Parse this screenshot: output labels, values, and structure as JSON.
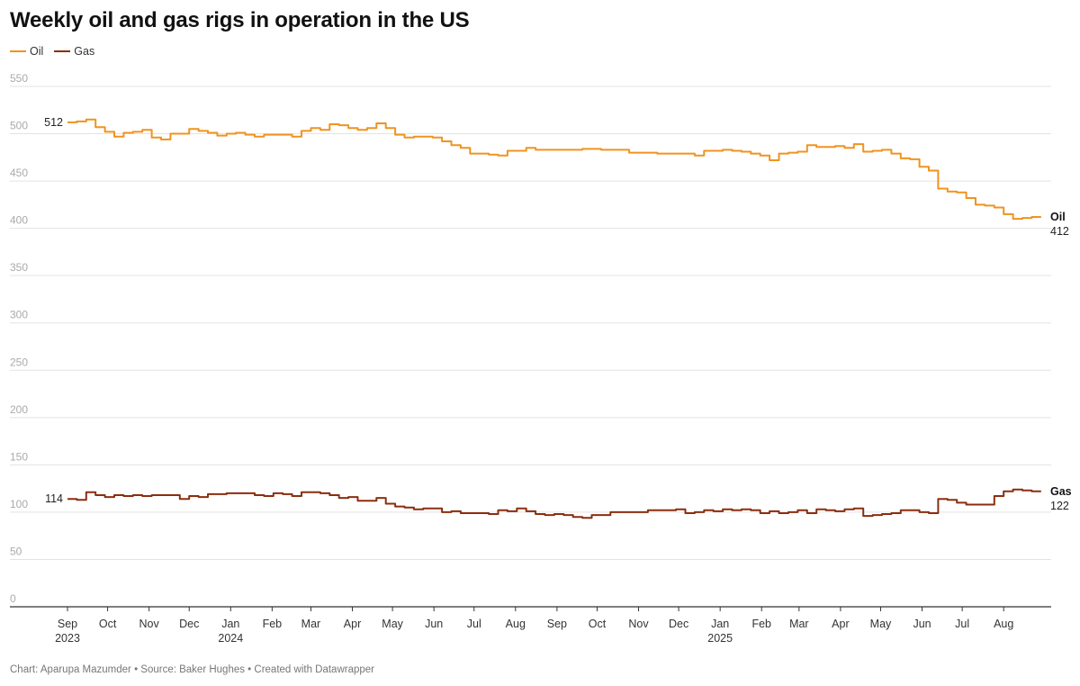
{
  "chart_data": {
    "type": "line",
    "title": "Weekly oil and gas rigs in operation in the US",
    "source": "Chart: Aparupa Mazumder • Source: Baker Hughes • Created with Datawrapper",
    "ylim": [
      0,
      550
    ],
    "yticks": [
      0,
      50,
      100,
      150,
      200,
      250,
      300,
      350,
      400,
      450,
      500,
      550
    ],
    "x_start": "2023-09-01",
    "x_end": "2025-08-15",
    "x_ticks": [
      {
        "date": "2023-09-01",
        "label": "Sep",
        "year": "2023"
      },
      {
        "date": "2023-10-01",
        "label": "Oct"
      },
      {
        "date": "2023-11-01",
        "label": "Nov"
      },
      {
        "date": "2023-12-01",
        "label": "Dec"
      },
      {
        "date": "2024-01-01",
        "label": "Jan",
        "year": "2024"
      },
      {
        "date": "2024-02-01",
        "label": "Feb"
      },
      {
        "date": "2024-03-01",
        "label": "Mar"
      },
      {
        "date": "2024-04-01",
        "label": "Apr"
      },
      {
        "date": "2024-05-01",
        "label": "May"
      },
      {
        "date": "2024-06-01",
        "label": "Jun"
      },
      {
        "date": "2024-07-01",
        "label": "Jul"
      },
      {
        "date": "2024-08-01",
        "label": "Aug"
      },
      {
        "date": "2024-09-01",
        "label": "Sep"
      },
      {
        "date": "2024-10-01",
        "label": "Oct"
      },
      {
        "date": "2024-11-01",
        "label": "Nov"
      },
      {
        "date": "2024-12-01",
        "label": "Dec"
      },
      {
        "date": "2025-01-01",
        "label": "Jan",
        "year": "2025"
      },
      {
        "date": "2025-02-01",
        "label": "Feb"
      },
      {
        "date": "2025-03-01",
        "label": "Mar"
      },
      {
        "date": "2025-04-01",
        "label": "Apr"
      },
      {
        "date": "2025-05-01",
        "label": "May"
      },
      {
        "date": "2025-06-01",
        "label": "Jun"
      },
      {
        "date": "2025-07-01",
        "label": "Jul"
      },
      {
        "date": "2025-08-01",
        "label": "Aug"
      }
    ],
    "grid": true,
    "legend": "top-left",
    "series": [
      {
        "name": "Oil",
        "color": "#f0931f",
        "start_label": "512",
        "end_label": "412",
        "values": [
          [
            "2023-09-01",
            512
          ],
          [
            "2023-09-08",
            513
          ],
          [
            "2023-09-15",
            515
          ],
          [
            "2023-09-22",
            507
          ],
          [
            "2023-09-29",
            502
          ],
          [
            "2023-10-06",
            497
          ],
          [
            "2023-10-13",
            501
          ],
          [
            "2023-10-20",
            502
          ],
          [
            "2023-10-27",
            504
          ],
          [
            "2023-11-03",
            496
          ],
          [
            "2023-11-10",
            494
          ],
          [
            "2023-11-17",
            500
          ],
          [
            "2023-11-24",
            500
          ],
          [
            "2023-12-01",
            505
          ],
          [
            "2023-12-08",
            503
          ],
          [
            "2023-12-15",
            501
          ],
          [
            "2023-12-22",
            498
          ],
          [
            "2023-12-29",
            500
          ],
          [
            "2024-01-05",
            501
          ],
          [
            "2024-01-12",
            499
          ],
          [
            "2024-01-19",
            497
          ],
          [
            "2024-01-26",
            499
          ],
          [
            "2024-02-02",
            499
          ],
          [
            "2024-02-09",
            499
          ],
          [
            "2024-02-16",
            497
          ],
          [
            "2024-02-23",
            503
          ],
          [
            "2024-03-01",
            506
          ],
          [
            "2024-03-08",
            504
          ],
          [
            "2024-03-15",
            510
          ],
          [
            "2024-03-22",
            509
          ],
          [
            "2024-03-29",
            506
          ],
          [
            "2024-04-05",
            504
          ],
          [
            "2024-04-12",
            506
          ],
          [
            "2024-04-19",
            511
          ],
          [
            "2024-04-26",
            506
          ],
          [
            "2024-05-03",
            499
          ],
          [
            "2024-05-10",
            496
          ],
          [
            "2024-05-17",
            497
          ],
          [
            "2024-05-24",
            497
          ],
          [
            "2024-05-31",
            496
          ],
          [
            "2024-06-07",
            492
          ],
          [
            "2024-06-14",
            488
          ],
          [
            "2024-06-21",
            485
          ],
          [
            "2024-06-28",
            479
          ],
          [
            "2024-07-05",
            479
          ],
          [
            "2024-07-12",
            478
          ],
          [
            "2024-07-19",
            477
          ],
          [
            "2024-07-26",
            482
          ],
          [
            "2024-08-02",
            482
          ],
          [
            "2024-08-09",
            485
          ],
          [
            "2024-08-16",
            483
          ],
          [
            "2024-08-23",
            483
          ],
          [
            "2024-08-30",
            483
          ],
          [
            "2024-09-06",
            483
          ],
          [
            "2024-09-13",
            483
          ],
          [
            "2024-09-20",
            484
          ],
          [
            "2024-09-27",
            484
          ],
          [
            "2024-10-04",
            483
          ],
          [
            "2024-10-11",
            483
          ],
          [
            "2024-10-18",
            483
          ],
          [
            "2024-10-25",
            480
          ],
          [
            "2024-11-01",
            480
          ],
          [
            "2024-11-08",
            480
          ],
          [
            "2024-11-15",
            479
          ],
          [
            "2024-11-22",
            479
          ],
          [
            "2024-11-29",
            479
          ],
          [
            "2024-12-06",
            479
          ],
          [
            "2024-12-13",
            477
          ],
          [
            "2024-12-20",
            482
          ],
          [
            "2024-12-27",
            482
          ],
          [
            "2025-01-03",
            483
          ],
          [
            "2025-01-10",
            482
          ],
          [
            "2025-01-17",
            481
          ],
          [
            "2025-01-24",
            479
          ],
          [
            "2025-01-31",
            477
          ],
          [
            "2025-02-07",
            472
          ],
          [
            "2025-02-14",
            479
          ],
          [
            "2025-02-21",
            480
          ],
          [
            "2025-02-28",
            481
          ],
          [
            "2025-03-07",
            488
          ],
          [
            "2025-03-14",
            486
          ],
          [
            "2025-03-21",
            486
          ],
          [
            "2025-03-28",
            487
          ],
          [
            "2025-04-04",
            485
          ],
          [
            "2025-04-11",
            489
          ],
          [
            "2025-04-18",
            481
          ],
          [
            "2025-04-25",
            482
          ],
          [
            "2025-05-02",
            483
          ],
          [
            "2025-05-09",
            479
          ],
          [
            "2025-05-16",
            474
          ],
          [
            "2025-05-23",
            473
          ],
          [
            "2025-05-30",
            465
          ],
          [
            "2025-06-06",
            461
          ],
          [
            "2025-06-13",
            442
          ],
          [
            "2025-06-20",
            439
          ],
          [
            "2025-06-27",
            438
          ],
          [
            "2025-07-04",
            432
          ],
          [
            "2025-07-11",
            425
          ],
          [
            "2025-07-18",
            424
          ],
          [
            "2025-07-25",
            422
          ],
          [
            "2025-08-01",
            415
          ],
          [
            "2025-08-08",
            410
          ],
          [
            "2025-08-15",
            411
          ],
          [
            "2025-08-22",
            412
          ]
        ]
      },
      {
        "name": "Gas",
        "color": "#8b2e0f",
        "start_label": "114",
        "end_label": "122",
        "values": [
          [
            "2023-09-01",
            114
          ],
          [
            "2023-09-08",
            113
          ],
          [
            "2023-09-15",
            121
          ],
          [
            "2023-09-22",
            118
          ],
          [
            "2023-09-29",
            116
          ],
          [
            "2023-10-06",
            118
          ],
          [
            "2023-10-13",
            117
          ],
          [
            "2023-10-20",
            118
          ],
          [
            "2023-10-27",
            117
          ],
          [
            "2023-11-03",
            118
          ],
          [
            "2023-11-10",
            118
          ],
          [
            "2023-11-17",
            118
          ],
          [
            "2023-11-24",
            114
          ],
          [
            "2023-12-01",
            117
          ],
          [
            "2023-12-08",
            116
          ],
          [
            "2023-12-15",
            119
          ],
          [
            "2023-12-22",
            119
          ],
          [
            "2023-12-29",
            120
          ],
          [
            "2024-01-05",
            120
          ],
          [
            "2024-01-12",
            120
          ],
          [
            "2024-01-19",
            118
          ],
          [
            "2024-01-26",
            117
          ],
          [
            "2024-02-02",
            120
          ],
          [
            "2024-02-09",
            119
          ],
          [
            "2024-02-16",
            117
          ],
          [
            "2024-02-23",
            121
          ],
          [
            "2024-03-01",
            121
          ],
          [
            "2024-03-08",
            120
          ],
          [
            "2024-03-15",
            118
          ],
          [
            "2024-03-22",
            115
          ],
          [
            "2024-03-29",
            116
          ],
          [
            "2024-04-05",
            112
          ],
          [
            "2024-04-12",
            112
          ],
          [
            "2024-04-19",
            115
          ],
          [
            "2024-04-26",
            109
          ],
          [
            "2024-05-03",
            106
          ],
          [
            "2024-05-10",
            105
          ],
          [
            "2024-05-17",
            103
          ],
          [
            "2024-05-24",
            104
          ],
          [
            "2024-05-31",
            104
          ],
          [
            "2024-06-07",
            100
          ],
          [
            "2024-06-14",
            101
          ],
          [
            "2024-06-21",
            99
          ],
          [
            "2024-06-28",
            99
          ],
          [
            "2024-07-05",
            99
          ],
          [
            "2024-07-12",
            98
          ],
          [
            "2024-07-19",
            102
          ],
          [
            "2024-07-26",
            101
          ],
          [
            "2024-08-02",
            104
          ],
          [
            "2024-08-09",
            101
          ],
          [
            "2024-08-16",
            98
          ],
          [
            "2024-08-23",
            97
          ],
          [
            "2024-08-30",
            98
          ],
          [
            "2024-09-06",
            97
          ],
          [
            "2024-09-13",
            95
          ],
          [
            "2024-09-20",
            94
          ],
          [
            "2024-09-27",
            97
          ],
          [
            "2024-10-04",
            97
          ],
          [
            "2024-10-11",
            100
          ],
          [
            "2024-10-18",
            100
          ],
          [
            "2024-10-25",
            100
          ],
          [
            "2024-11-01",
            100
          ],
          [
            "2024-11-08",
            102
          ],
          [
            "2024-11-15",
            102
          ],
          [
            "2024-11-22",
            102
          ],
          [
            "2024-11-29",
            103
          ],
          [
            "2024-12-06",
            99
          ],
          [
            "2024-12-13",
            100
          ],
          [
            "2024-12-20",
            102
          ],
          [
            "2024-12-27",
            101
          ],
          [
            "2025-01-03",
            103
          ],
          [
            "2025-01-10",
            102
          ],
          [
            "2025-01-17",
            103
          ],
          [
            "2025-01-24",
            102
          ],
          [
            "2025-01-31",
            99
          ],
          [
            "2025-02-07",
            101
          ],
          [
            "2025-02-14",
            99
          ],
          [
            "2025-02-21",
            100
          ],
          [
            "2025-02-28",
            102
          ],
          [
            "2025-03-07",
            99
          ],
          [
            "2025-03-14",
            103
          ],
          [
            "2025-03-21",
            102
          ],
          [
            "2025-03-28",
            101
          ],
          [
            "2025-04-04",
            103
          ],
          [
            "2025-04-11",
            104
          ],
          [
            "2025-04-18",
            96
          ],
          [
            "2025-04-25",
            97
          ],
          [
            "2025-05-02",
            98
          ],
          [
            "2025-05-09",
            99
          ],
          [
            "2025-05-16",
            102
          ],
          [
            "2025-05-23",
            102
          ],
          [
            "2025-05-30",
            100
          ],
          [
            "2025-06-06",
            99
          ],
          [
            "2025-06-13",
            114
          ],
          [
            "2025-06-20",
            113
          ],
          [
            "2025-06-27",
            110
          ],
          [
            "2025-07-04",
            108
          ],
          [
            "2025-07-11",
            108
          ],
          [
            "2025-07-18",
            108
          ],
          [
            "2025-07-25",
            117
          ],
          [
            "2025-08-01",
            122
          ],
          [
            "2025-08-08",
            124
          ],
          [
            "2025-08-15",
            123
          ],
          [
            "2025-08-22",
            122
          ]
        ]
      }
    ]
  }
}
